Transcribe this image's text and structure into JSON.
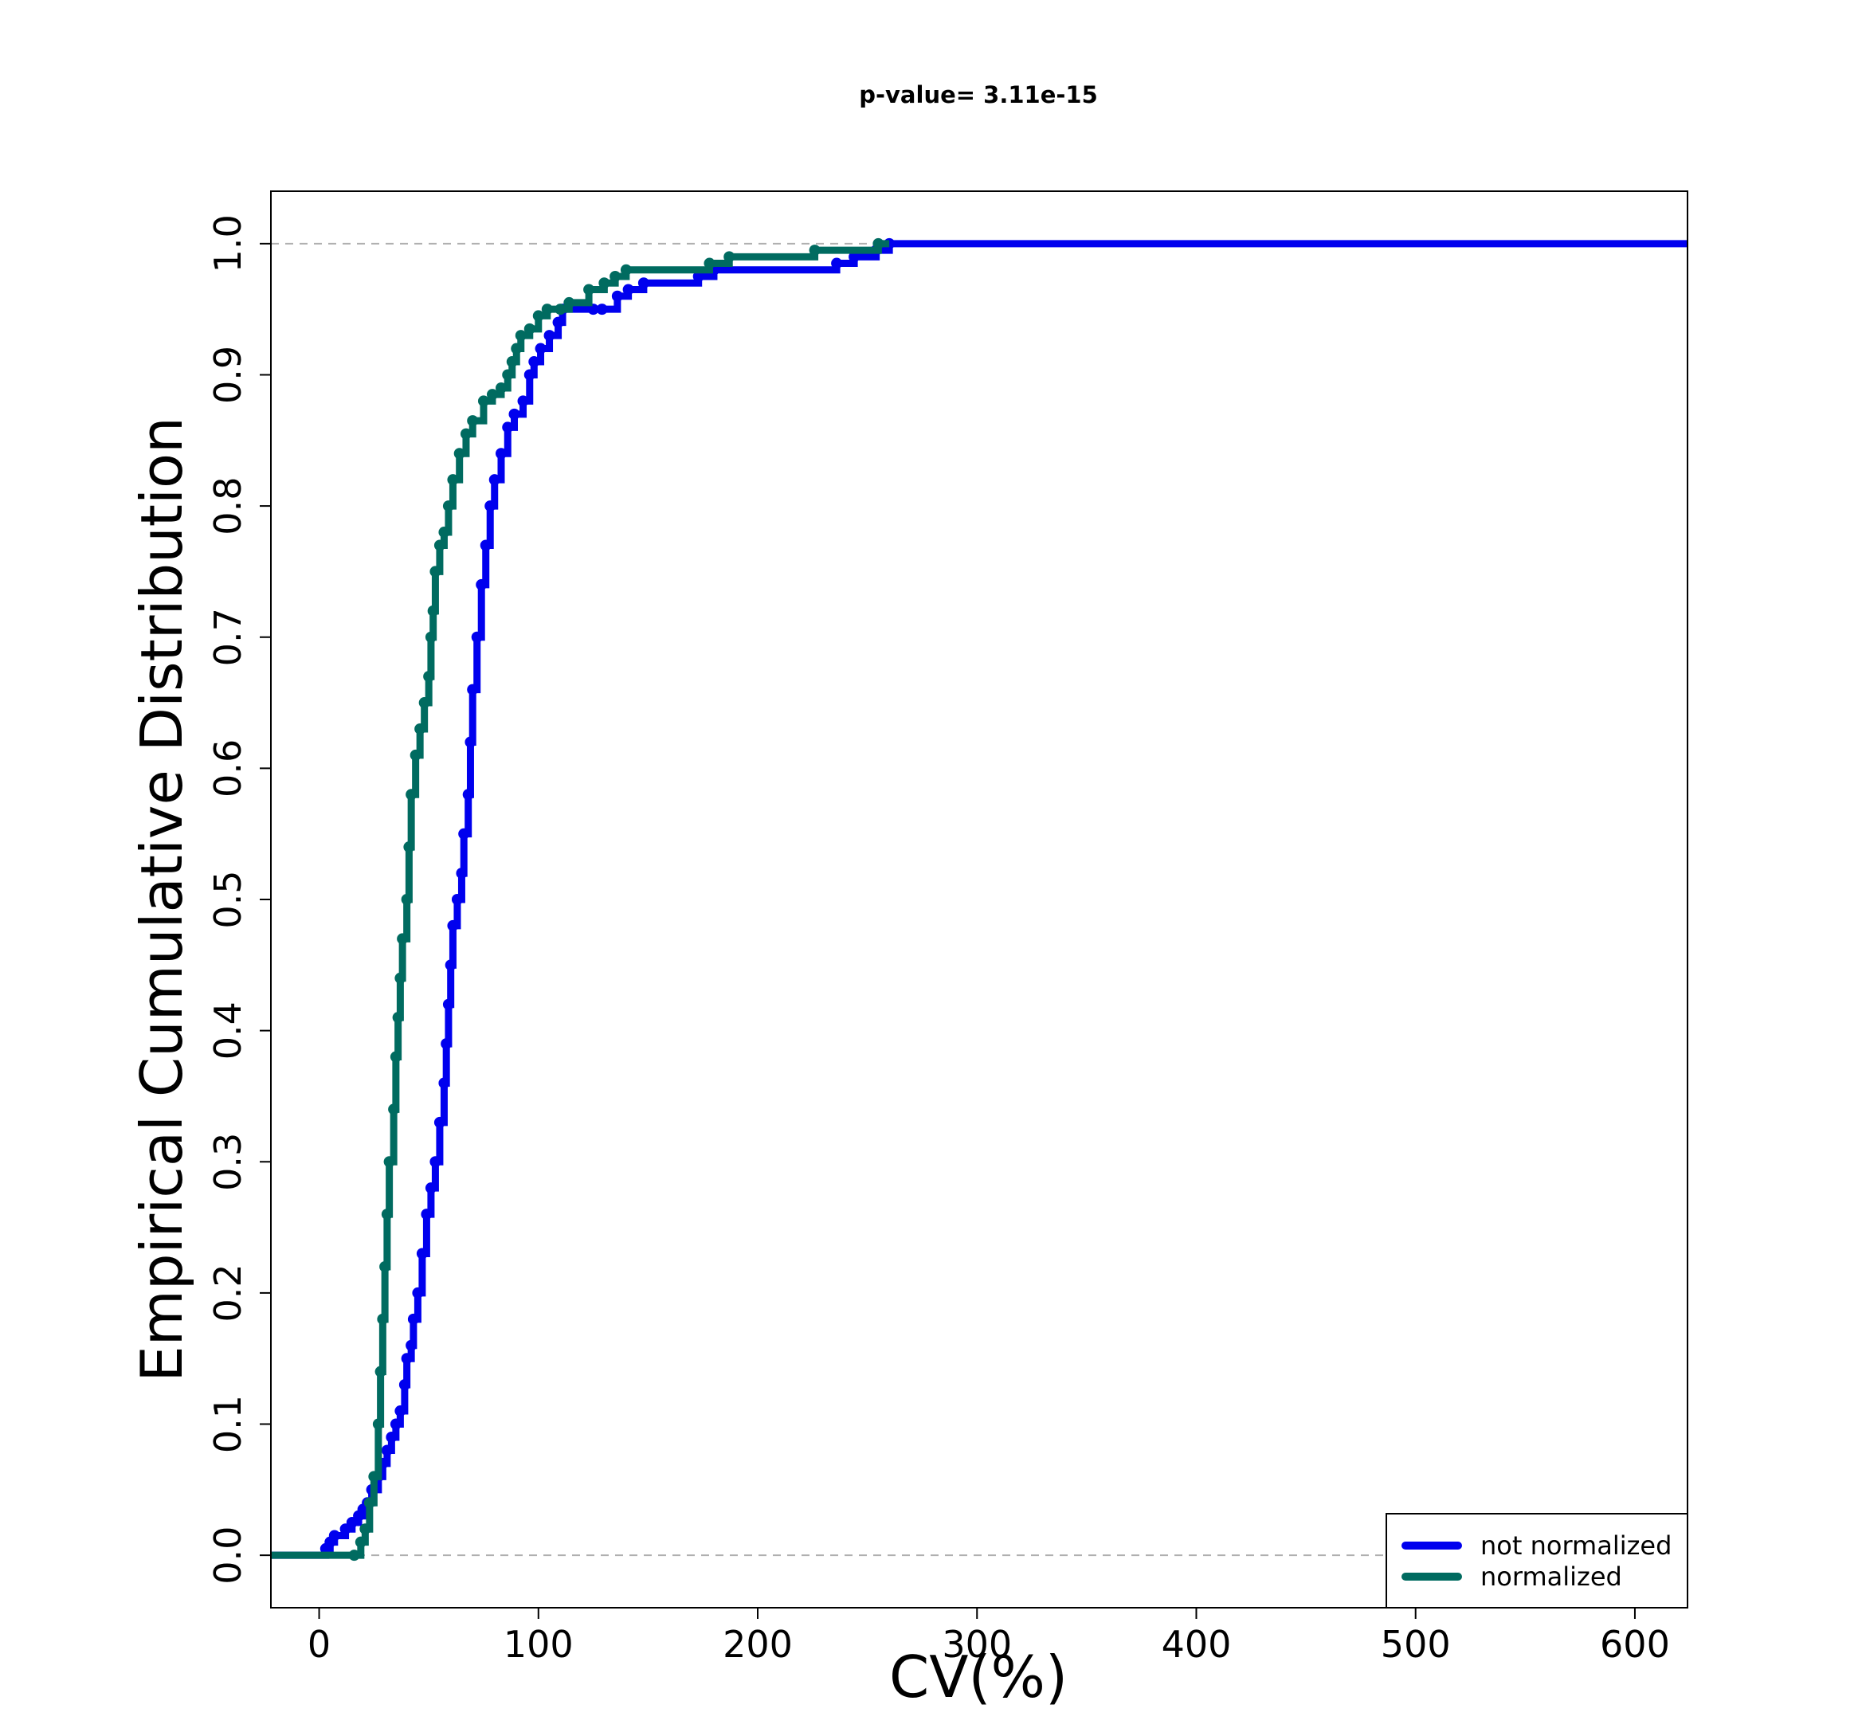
{
  "chart_data": {
    "type": "line",
    "title": "p-value= 3.11e-15",
    "xlabel": "CV(%)",
    "ylabel": "Empirical Cumulative Distribution",
    "xlim": [
      -22,
      624
    ],
    "ylim": [
      -0.04,
      1.04
    ],
    "x_ticks": [
      "0",
      "100",
      "200",
      "300",
      "400",
      "500",
      "600"
    ],
    "y_ticks": [
      "0.0",
      "0.1",
      "0.2",
      "0.3",
      "0.4",
      "0.5",
      "0.6",
      "0.7",
      "0.8",
      "0.9",
      "1.0"
    ],
    "reference_lines": [
      0,
      1
    ],
    "grid": false,
    "legend_position": "bottom-right",
    "series": [
      {
        "name": "not normalized",
        "color": "#0000ee",
        "points": [
          [
            0,
            0
          ],
          [
            3,
            0.005
          ],
          [
            5,
            0.01
          ],
          [
            7,
            0.015
          ],
          [
            12,
            0.02
          ],
          [
            15,
            0.025
          ],
          [
            18,
            0.03
          ],
          [
            20,
            0.035
          ],
          [
            22,
            0.04
          ],
          [
            24,
            0.05
          ],
          [
            27,
            0.06
          ],
          [
            29,
            0.07
          ],
          [
            31,
            0.08
          ],
          [
            33,
            0.09
          ],
          [
            35,
            0.1
          ],
          [
            37,
            0.11
          ],
          [
            39,
            0.13
          ],
          [
            40,
            0.15
          ],
          [
            42,
            0.16
          ],
          [
            43,
            0.18
          ],
          [
            45,
            0.2
          ],
          [
            47,
            0.23
          ],
          [
            49,
            0.26
          ],
          [
            51,
            0.28
          ],
          [
            53,
            0.3
          ],
          [
            55,
            0.33
          ],
          [
            57,
            0.36
          ],
          [
            58,
            0.39
          ],
          [
            59,
            0.42
          ],
          [
            60,
            0.45
          ],
          [
            61,
            0.48
          ],
          [
            63,
            0.5
          ],
          [
            65,
            0.52
          ],
          [
            66,
            0.55
          ],
          [
            68,
            0.58
          ],
          [
            69,
            0.62
          ],
          [
            70,
            0.66
          ],
          [
            72,
            0.7
          ],
          [
            74,
            0.74
          ],
          [
            76,
            0.77
          ],
          [
            78,
            0.8
          ],
          [
            80,
            0.82
          ],
          [
            83,
            0.84
          ],
          [
            86,
            0.86
          ],
          [
            89,
            0.87
          ],
          [
            93,
            0.88
          ],
          [
            96,
            0.9
          ],
          [
            98,
            0.91
          ],
          [
            101,
            0.92
          ],
          [
            105,
            0.93
          ],
          [
            109,
            0.94
          ],
          [
            111,
            0.95
          ],
          [
            125,
            0.95
          ],
          [
            129,
            0.95
          ],
          [
            136,
            0.96
          ],
          [
            141,
            0.965
          ],
          [
            148,
            0.97
          ],
          [
            173,
            0.975
          ],
          [
            180,
            0.98
          ],
          [
            236,
            0.985
          ],
          [
            244,
            0.99
          ],
          [
            254,
            0.995
          ],
          [
            260,
            1.0
          ],
          [
            624,
            1.0
          ]
        ]
      },
      {
        "name": "normalized",
        "color": "#006b60",
        "points": [
          [
            0,
            0
          ],
          [
            16,
            0
          ],
          [
            19,
            0.01
          ],
          [
            21,
            0.02
          ],
          [
            23,
            0.04
          ],
          [
            25,
            0.06
          ],
          [
            27,
            0.1
          ],
          [
            28,
            0.14
          ],
          [
            29,
            0.18
          ],
          [
            30,
            0.22
          ],
          [
            31,
            0.26
          ],
          [
            32,
            0.3
          ],
          [
            34,
            0.34
          ],
          [
            35,
            0.38
          ],
          [
            36,
            0.41
          ],
          [
            37,
            0.44
          ],
          [
            38,
            0.47
          ],
          [
            40,
            0.5
          ],
          [
            41,
            0.54
          ],
          [
            42,
            0.58
          ],
          [
            44,
            0.61
          ],
          [
            46,
            0.63
          ],
          [
            48,
            0.65
          ],
          [
            50,
            0.67
          ],
          [
            51,
            0.7
          ],
          [
            52,
            0.72
          ],
          [
            53,
            0.75
          ],
          [
            55,
            0.77
          ],
          [
            57,
            0.78
          ],
          [
            59,
            0.8
          ],
          [
            61,
            0.82
          ],
          [
            64,
            0.84
          ],
          [
            67,
            0.855
          ],
          [
            70,
            0.865
          ],
          [
            75,
            0.88
          ],
          [
            79,
            0.885
          ],
          [
            83,
            0.89
          ],
          [
            86,
            0.9
          ],
          [
            88,
            0.91
          ],
          [
            90,
            0.92
          ],
          [
            92,
            0.93
          ],
          [
            96,
            0.935
          ],
          [
            100,
            0.945
          ],
          [
            104,
            0.95
          ],
          [
            110,
            0.95
          ],
          [
            114,
            0.955
          ],
          [
            123,
            0.965
          ],
          [
            130,
            0.97
          ],
          [
            135,
            0.975
          ],
          [
            140,
            0.98
          ],
          [
            178,
            0.985
          ],
          [
            187,
            0.99
          ],
          [
            226,
            0.995
          ],
          [
            255,
            1.0
          ],
          [
            260,
            1.0
          ]
        ]
      }
    ]
  }
}
